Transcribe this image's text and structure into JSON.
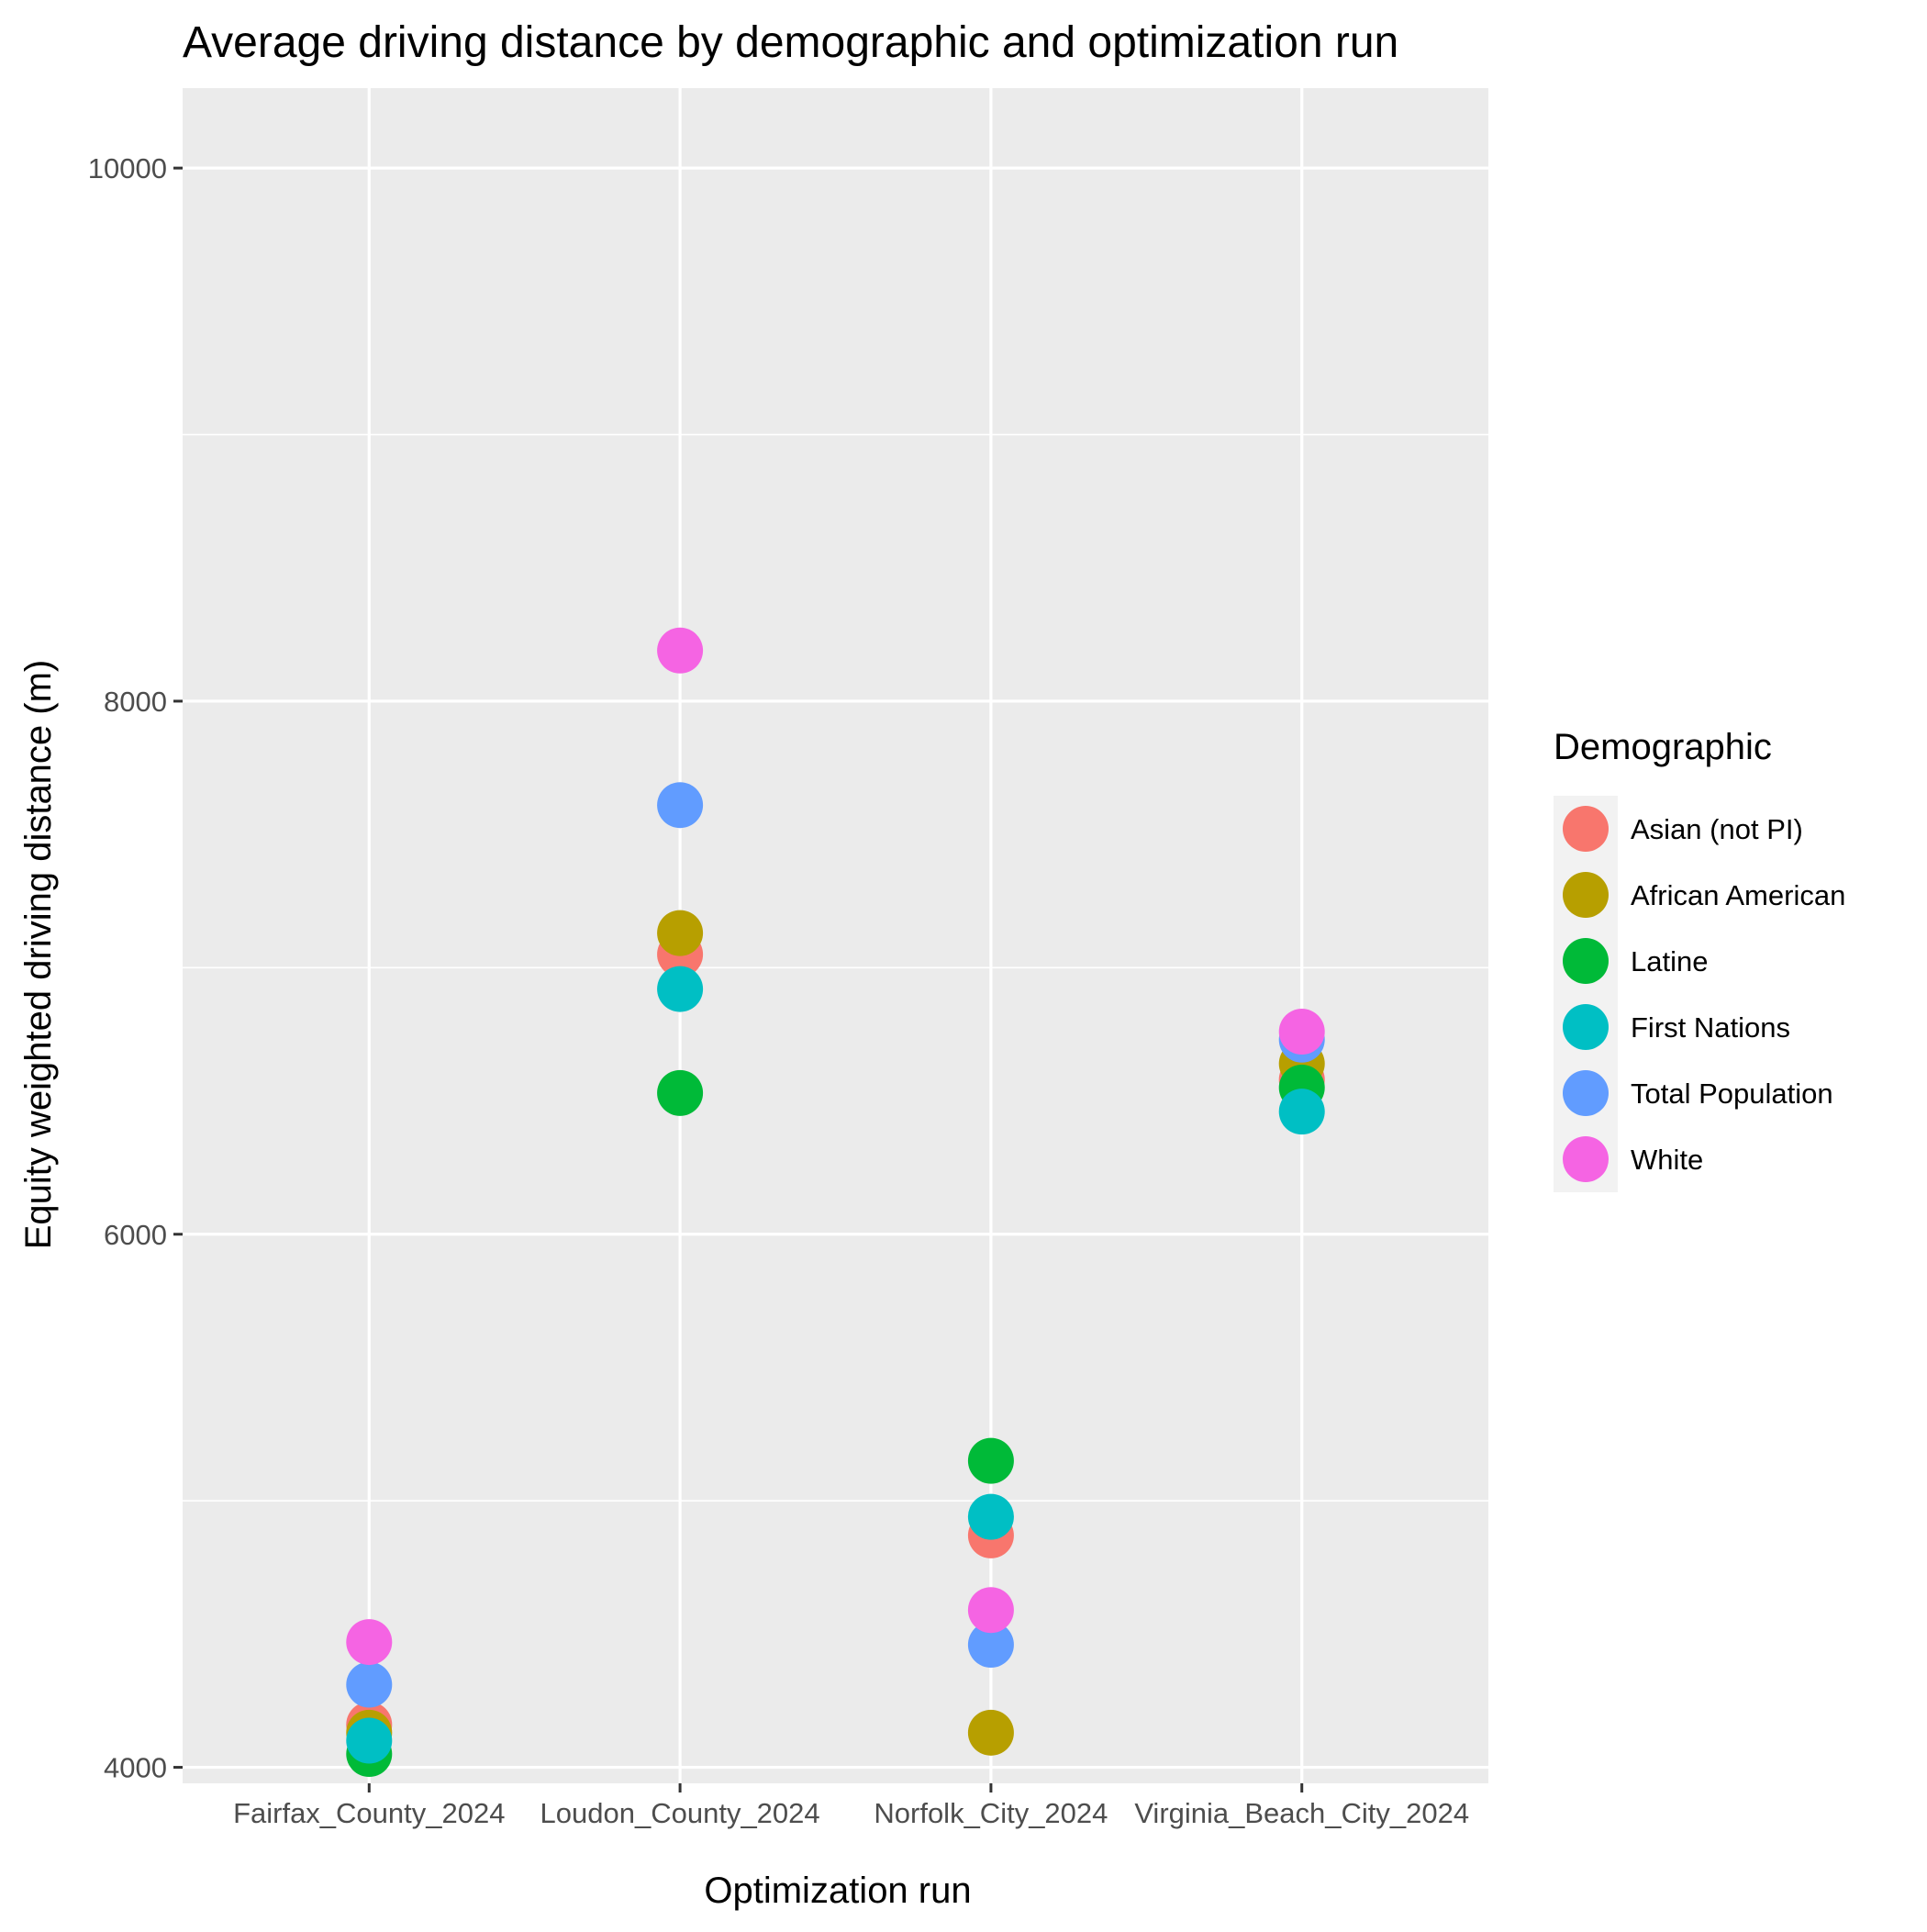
{
  "chart_data": {
    "type": "scatter",
    "title": "Average driving distance by demographic and optimization run",
    "xlabel": "Optimization run",
    "ylabel": "Equity weighted driving distance (m)",
    "ylim": [
      3940,
      10300
    ],
    "y_ticks": [
      4000,
      6000,
      8000,
      10000
    ],
    "categories": [
      "Fairfax_County_2024",
      "Loudon_County_2024",
      "Norfolk_City_2024",
      "Virginia_Beach_City_2024"
    ],
    "grid": true,
    "legend_position": "right",
    "legend_title": "Demographic",
    "series": [
      {
        "name": "Asian (not PI)",
        "color": "#F8766D",
        "values": [
          4160,
          7050,
          4870,
          6580
        ]
      },
      {
        "name": "African American",
        "color": "#B79F00",
        "values": [
          4130,
          7130,
          4130,
          6640
        ]
      },
      {
        "name": "Latine",
        "color": "#00BA38",
        "values": [
          4050,
          6530,
          5150,
          6550
        ]
      },
      {
        "name": "First Nations",
        "color": "#00BFC4",
        "values": [
          4100,
          6920,
          4940,
          6460
        ]
      },
      {
        "name": "Total Population",
        "color": "#619CFF",
        "values": [
          4310,
          7610,
          4460,
          6730
        ]
      },
      {
        "name": "White",
        "color": "#F564E3",
        "values": [
          4470,
          8190,
          4590,
          6760
        ]
      }
    ]
  }
}
